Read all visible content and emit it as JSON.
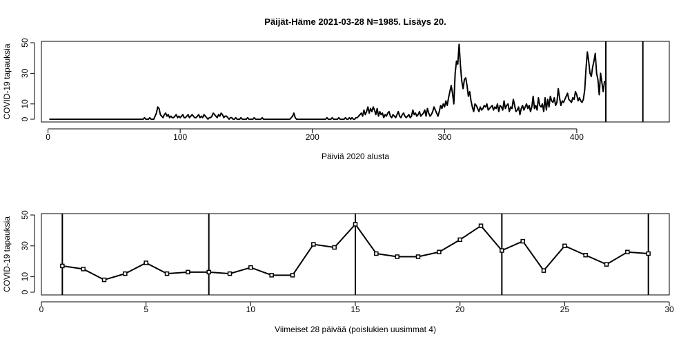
{
  "chart_data": [
    {
      "type": "line",
      "title": "Päijät-Häme 2021-03-28 N=1985. Lisäys 20.",
      "xlabel": "Päiviä 2020 alusta",
      "ylabel": "COVID-19 tapauksia",
      "xlim": [
        -5,
        470
      ],
      "ylim": [
        0,
        50
      ],
      "x_ticks": [
        0,
        100,
        200,
        300,
        400
      ],
      "y_ticks": [
        0,
        10,
        30,
        50
      ],
      "vlines": [
        422,
        450
      ],
      "series": [
        {
          "x_start": 1,
          "values": [
            0,
            0,
            0,
            0,
            0,
            0,
            0,
            0,
            0,
            0,
            0,
            0,
            0,
            0,
            0,
            0,
            0,
            0,
            0,
            0,
            0,
            0,
            0,
            0,
            0,
            0,
            0,
            0,
            0,
            0,
            0,
            0,
            0,
            0,
            0,
            0,
            0,
            0,
            0,
            0,
            0,
            0,
            0,
            0,
            0,
            0,
            0,
            0,
            0,
            0,
            0,
            0,
            0,
            0,
            0,
            0,
            0,
            0,
            0,
            0,
            0,
            0,
            0,
            0,
            0,
            0,
            0,
            0,
            0,
            0,
            0,
            0,
            1,
            0,
            0,
            0,
            1,
            0,
            0,
            0,
            2,
            4,
            8,
            7,
            3,
            2,
            1,
            3,
            4,
            2,
            3,
            1,
            2,
            1,
            1,
            2,
            3,
            1,
            2,
            1,
            2,
            3,
            1,
            1,
            2,
            3,
            1,
            2,
            3,
            2,
            1,
            1,
            2,
            3,
            1,
            2,
            1,
            3,
            2,
            1,
            0,
            1,
            1,
            2,
            4,
            3,
            2,
            1,
            3,
            2,
            4,
            3,
            1,
            2,
            2,
            1,
            0,
            1,
            1,
            0,
            0,
            1,
            0,
            0,
            0,
            1,
            0,
            0,
            0,
            0,
            1,
            0,
            0,
            0,
            0,
            1,
            0,
            0,
            0,
            0,
            0,
            1,
            0,
            0,
            0,
            0,
            0,
            0,
            0,
            0,
            0,
            0,
            0,
            0,
            0,
            0,
            0,
            0,
            0,
            0,
            0,
            0,
            0,
            1,
            2,
            4,
            1,
            0,
            0,
            0,
            0,
            0,
            0,
            0,
            0,
            0,
            0,
            0,
            0,
            0,
            0,
            0,
            0,
            0,
            0,
            0,
            0,
            0,
            0,
            0,
            1,
            0,
            0,
            0,
            1,
            0,
            0,
            0,
            0,
            1,
            0,
            0,
            0,
            0,
            1,
            0,
            0,
            1,
            0,
            1,
            0,
            0,
            1,
            1,
            2,
            3,
            4,
            2,
            6,
            3,
            5,
            8,
            4,
            7,
            5,
            8,
            6,
            3,
            7,
            2,
            5,
            3,
            4,
            1,
            3,
            2,
            4,
            5,
            2,
            1,
            3,
            2,
            1,
            3,
            5,
            2,
            1,
            3,
            4,
            2,
            1,
            2,
            3,
            1,
            2,
            6,
            3,
            4,
            2,
            3,
            5,
            2,
            3,
            4,
            6,
            2,
            7,
            4,
            2,
            3,
            5,
            8,
            6,
            4,
            2,
            5,
            9,
            7,
            10,
            8,
            12,
            9,
            14,
            18,
            22,
            17,
            10,
            30,
            38,
            36,
            49,
            35,
            25,
            20,
            26,
            27,
            22,
            15,
            18,
            12,
            8,
            5,
            10,
            9,
            7,
            5,
            8,
            6,
            7,
            9,
            8,
            10,
            6,
            7,
            8,
            9,
            6,
            8,
            7,
            10,
            5,
            9,
            8,
            6,
            12,
            7,
            9,
            10,
            5,
            8,
            7,
            13,
            9,
            5,
            6,
            8,
            3,
            7,
            9,
            6,
            8,
            10,
            7,
            9,
            5,
            8,
            15,
            7,
            9,
            6,
            14,
            9,
            8,
            10,
            5,
            14,
            6,
            13,
            8,
            15,
            12,
            11,
            14,
            9,
            11,
            20,
            14,
            9,
            12,
            11,
            13,
            15,
            17,
            13,
            12,
            11,
            14,
            13,
            18,
            16,
            12,
            14,
            12,
            11,
            13,
            19,
            33,
            44,
            38,
            30,
            28,
            34,
            38,
            43,
            30,
            26,
            16,
            30,
            24,
            18,
            25
          ],
          "points": false
        }
      ]
    },
    {
      "type": "line",
      "xlabel": "Viimeiset 28 päivää (poislukien uusimmat 4)",
      "ylabel": "COVID-19 tapauksia",
      "xlim": [
        0,
        30
      ],
      "ylim": [
        0,
        50
      ],
      "x_ticks": [
        0,
        5,
        10,
        15,
        20,
        25,
        30
      ],
      "y_ticks": [
        0,
        10,
        30,
        50
      ],
      "vlines": [
        1,
        8,
        15,
        22,
        29
      ],
      "series": [
        {
          "x": [
            1,
            2,
            3,
            4,
            5,
            6,
            7,
            8,
            9,
            10,
            11,
            12,
            13,
            14,
            15,
            16,
            17,
            18,
            19,
            20,
            21,
            22,
            23,
            24,
            25,
            26,
            27,
            28,
            29
          ],
          "values": [
            17,
            15,
            8,
            12,
            19,
            12,
            13,
            13,
            12,
            16,
            11,
            11,
            31,
            29,
            44,
            25,
            23,
            23,
            26,
            34,
            43,
            27,
            33,
            14,
            30,
            24,
            18,
            26,
            25
          ],
          "points": true
        }
      ]
    }
  ]
}
